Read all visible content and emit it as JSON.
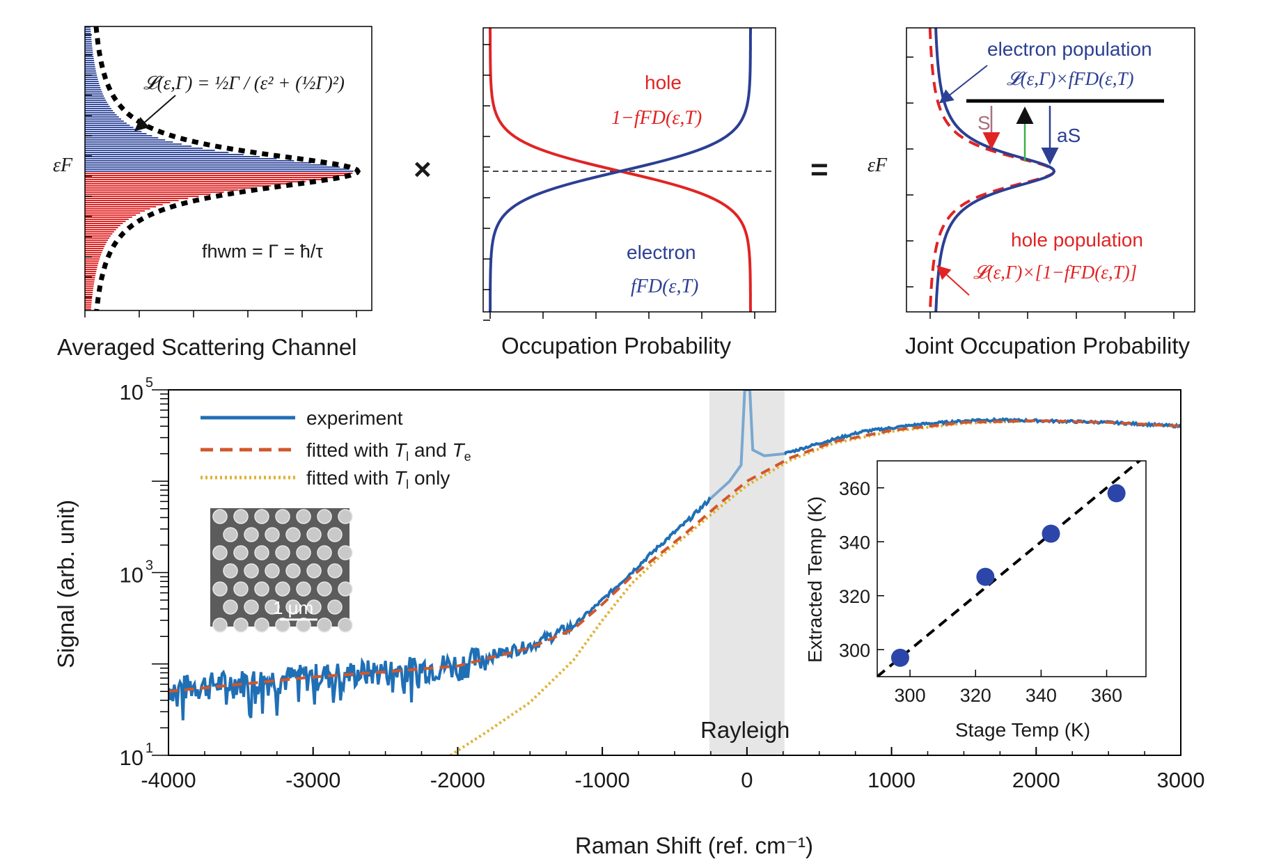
{
  "panels": {
    "a": {
      "caption": "Averaged Scattering Channel",
      "ef_label": "εF",
      "lorentz_formula": "𝓛(ε,Γ) = ½Γ / (ε² + (½Γ)²)",
      "fwhm_formula": "fhwm = Γ = ħ/τ",
      "colors": {
        "upper": "#3a50a0",
        "lower": "#e02424",
        "envelope": "#000000"
      }
    },
    "times_symbol": "×",
    "b": {
      "caption": "Occupation Probability",
      "hole_label": "hole",
      "hole_formula": "1−fFD(ε,T)",
      "electron_label": "electron",
      "electron_formula": "fFD(ε,T)",
      "colors": {
        "hole": "#e02424",
        "electron": "#2b3f93"
      }
    },
    "equals_symbol": "=",
    "c": {
      "caption": "Joint Occupation Probability",
      "ef_label": "εF",
      "electron_label": "electron population",
      "electron_formula": "𝓛(ε,Γ)×fFD(ε,T)",
      "hole_label": "hole population",
      "hole_formula": "𝓛(ε,Γ)×[1−fFD(ε,T)]",
      "arrow_labels": {
        "s": "S",
        "as": "aS"
      },
      "colors": {
        "electron": "#2b3f93",
        "hole": "#e02424",
        "s_arrow": "#a87080",
        "green_arrow": "#3ab04a"
      }
    }
  },
  "main_chart": {
    "xlabel": "Raman Shift (ref. cm⁻¹)",
    "ylabel": "Signal (arb. unit)",
    "x_ticks": [
      -4000,
      -3000,
      -2000,
      -1000,
      0,
      1000,
      2000,
      3000
    ],
    "y_ticks": [
      {
        "exp": 1,
        "label": "10"
      },
      {
        "exp": 3,
        "label": "10"
      },
      {
        "exp": 5,
        "label": "10"
      }
    ],
    "rayleigh_label": "Rayleigh",
    "legend": {
      "experiment": "experiment",
      "fit_both_prefix": "fitted with ",
      "fit_both_tl": "T",
      "fit_both_tl_sub": "l",
      "fit_both_mid": " and ",
      "fit_both_te": "T",
      "fit_both_te_sub": "e",
      "fit_l_prefix": "fitted with ",
      "fit_l_t": "T",
      "fit_l_sub": "l",
      "fit_l_suffix": " only"
    },
    "sem_scale": "1 μm",
    "colors": {
      "experiment": "#1f6fb5",
      "fit_both": "#d2562a",
      "fit_l": "#e0b030",
      "rayleigh_band": "#e6e6e6"
    }
  },
  "chart_data": [
    {
      "type": "line",
      "title": "",
      "xlabel": "Raman Shift (ref. cm⁻¹)",
      "ylabel": "Signal (arb. unit)",
      "xlim": [
        -4000,
        3000
      ],
      "ylim": [
        10,
        100000
      ],
      "yscale": "log",
      "shaded_region": {
        "label": "Rayleigh",
        "x": [
          -260,
          260
        ]
      },
      "series": [
        {
          "name": "experiment",
          "x": [
            -4000,
            -3500,
            -3000,
            -2500,
            -2000,
            -1500,
            -1200,
            -1000,
            -800,
            -600,
            -400,
            -250,
            260,
            500,
            800,
            1200,
            1600,
            2000,
            2500,
            3000
          ],
          "y": [
            55,
            65,
            75,
            85,
            100,
            160,
            260,
            500,
            1000,
            2000,
            3800,
            6500,
            20000,
            26000,
            35000,
            42000,
            47000,
            46000,
            44000,
            40000
          ]
        },
        {
          "name": "fitted with Tl and Te",
          "x": [
            -4000,
            -3500,
            -3000,
            -2500,
            -2000,
            -1500,
            -1200,
            -1000,
            -800,
            -600,
            -400,
            -200,
            0,
            300,
            600,
            1000,
            1500,
            2000,
            2500,
            3000
          ],
          "y": [
            50,
            60,
            72,
            82,
            95,
            150,
            240,
            450,
            900,
            1600,
            2900,
            5500,
            10000,
            18000,
            27000,
            36000,
            44000,
            46000,
            44000,
            40000
          ]
        },
        {
          "name": "fitted with Tl only",
          "x": [
            -2050,
            -1800,
            -1500,
            -1200,
            -1000,
            -800,
            -600,
            -400,
            -200,
            0,
            300,
            600,
            1000,
            1500,
            2000,
            2500,
            3000
          ],
          "y": [
            10,
            18,
            38,
            110,
            300,
            750,
            1500,
            2700,
            5000,
            9000,
            17000,
            26000,
            35000,
            43000,
            46000,
            44000,
            40000
          ]
        }
      ]
    },
    {
      "type": "scatter",
      "title": "",
      "xlabel": "Stage Temp (K)",
      "ylabel": "Extracted Temp (K)",
      "xlim": [
        290,
        372
      ],
      "ylim": [
        290,
        370
      ],
      "x_ticks": [
        300,
        320,
        340,
        360
      ],
      "y_ticks": [
        300,
        320,
        340,
        360
      ],
      "series": [
        {
          "x": [
            297,
            323,
            343,
            363
          ],
          "y": [
            297,
            327,
            343,
            358
          ]
        }
      ],
      "reference_line": {
        "x": [
          290,
          372
        ],
        "y": [
          290,
          372
        ],
        "style": "dashed"
      }
    }
  ]
}
